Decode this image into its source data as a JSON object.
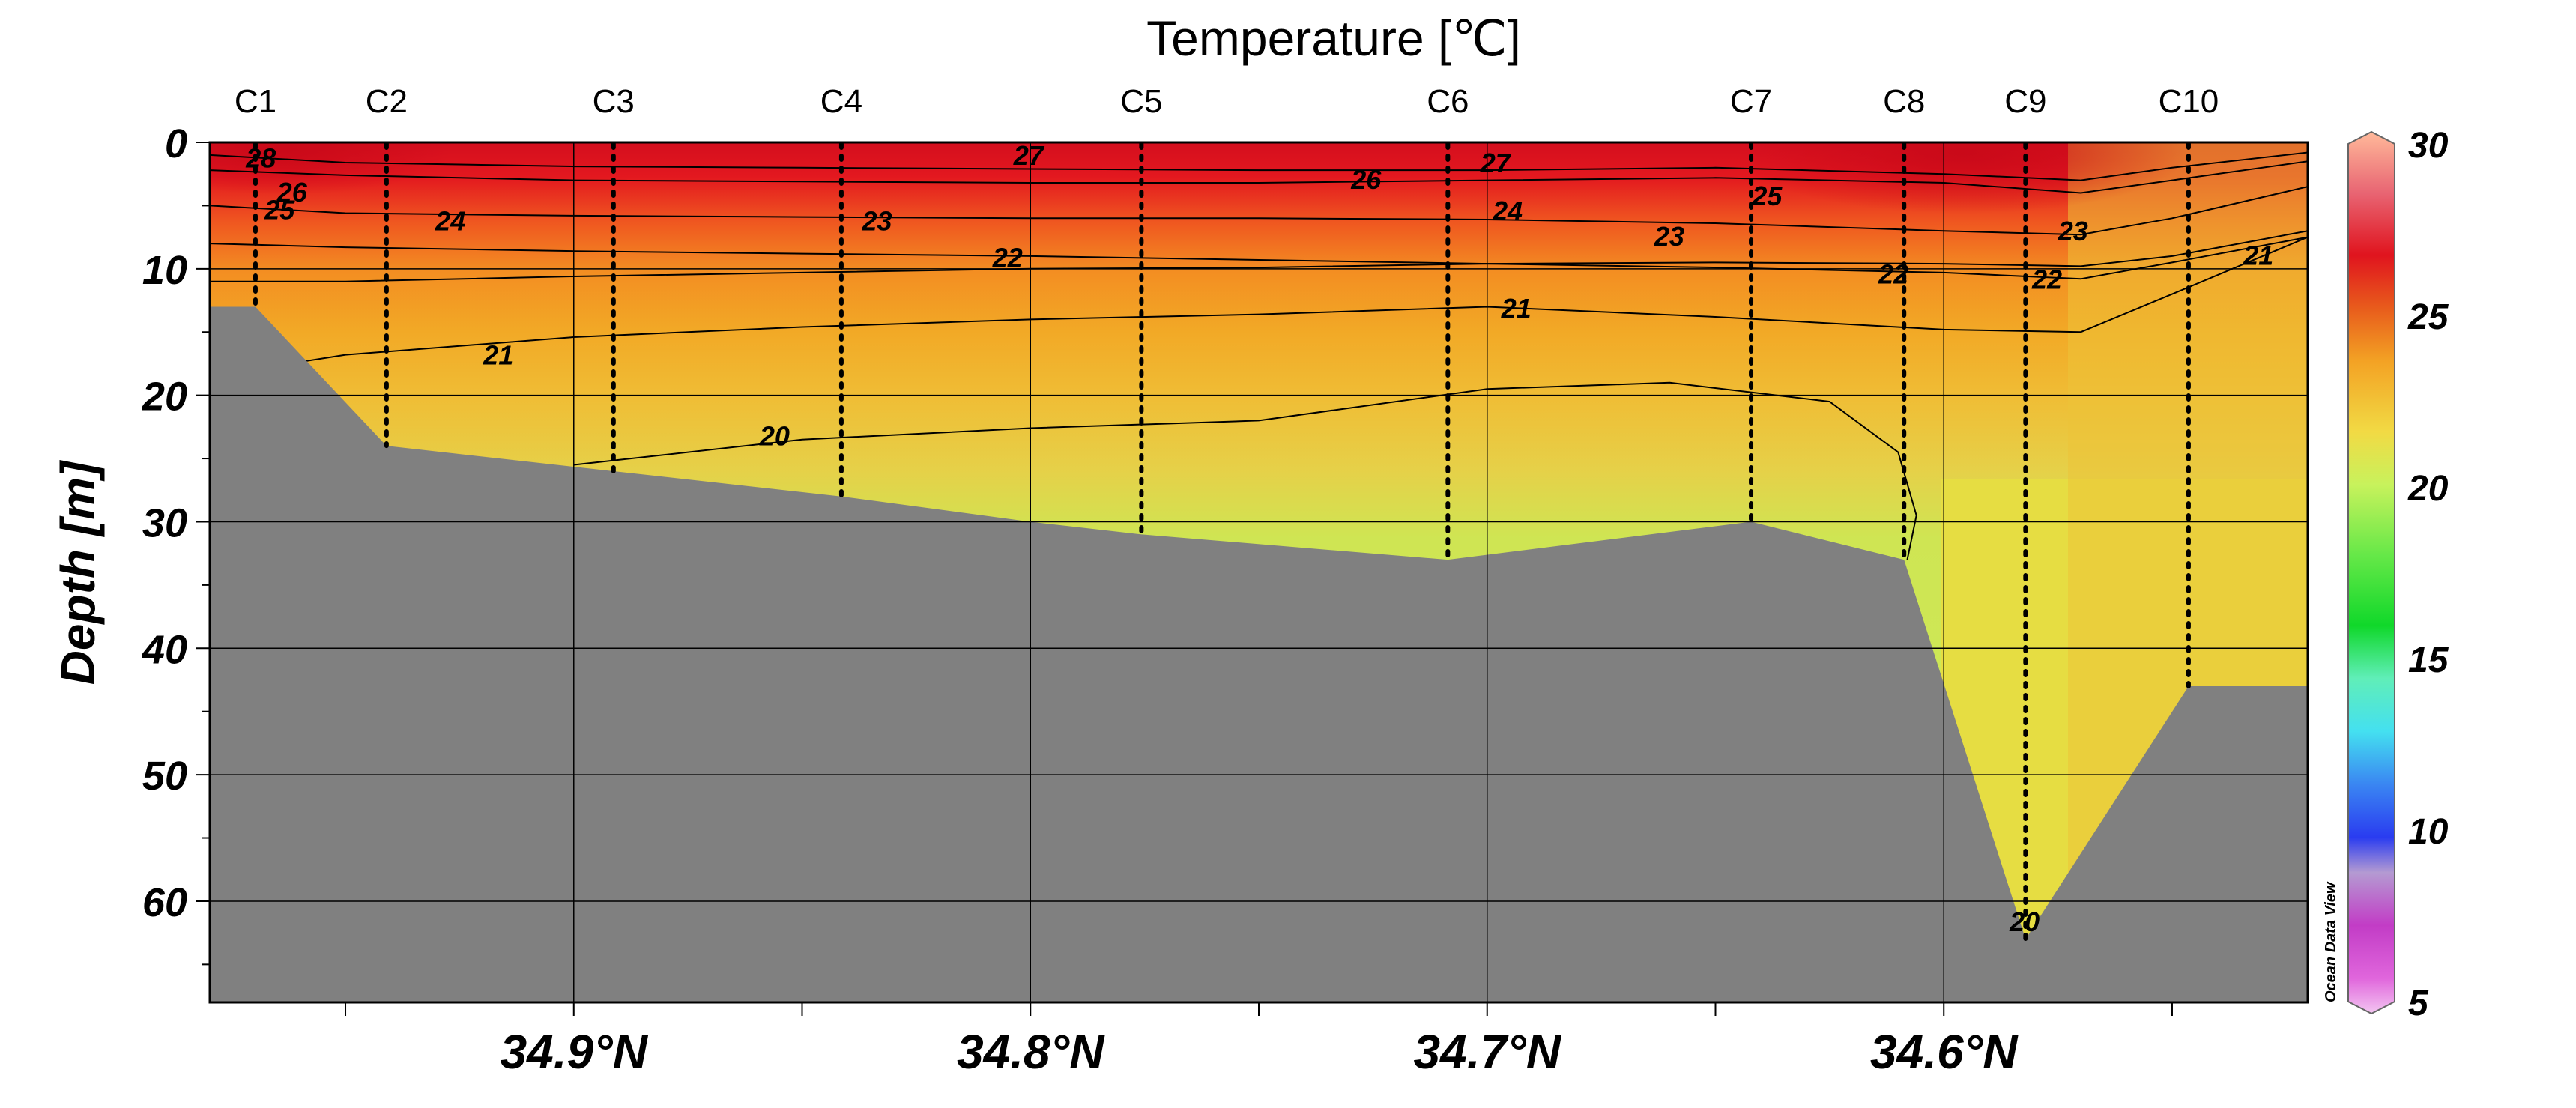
{
  "chart_data": {
    "type": "heatmap",
    "title": "Temperature [℃]",
    "ylabel": "Depth [m]",
    "xlabel": "",
    "xlim": [
      34.9797,
      34.5203
    ],
    "ylim": [
      0,
      68
    ],
    "x_ticks": [
      34.9,
      34.8,
      34.7,
      34.6
    ],
    "x_tick_labels": [
      "34.9°N",
      "34.8°N",
      "34.7°N",
      "34.6°N"
    ],
    "x_minor_ticks": [
      34.95,
      34.85,
      34.75,
      34.65,
      34.55
    ],
    "y_ticks": [
      0,
      10,
      20,
      30,
      40,
      50,
      60
    ],
    "y_tick_labels": [
      "0",
      "10",
      "20",
      "30",
      "40",
      "50",
      "60"
    ],
    "y_minor_ticks": [
      5,
      15,
      25,
      35,
      45,
      55,
      65
    ],
    "grid": true,
    "stations": [
      {
        "name": "C1",
        "lat": 34.9697,
        "max_depth": 13
      },
      {
        "name": "C2",
        "lat": 34.941,
        "max_depth": 24
      },
      {
        "name": "C3",
        "lat": 34.8913,
        "max_depth": 26
      },
      {
        "name": "C4",
        "lat": 34.8414,
        "max_depth": 28
      },
      {
        "name": "C5",
        "lat": 34.7757,
        "max_depth": 31
      },
      {
        "name": "C6",
        "lat": 34.7086,
        "max_depth": 33
      },
      {
        "name": "C7",
        "lat": 34.6422,
        "max_depth": 30
      },
      {
        "name": "C8",
        "lat": 34.6087,
        "max_depth": 33
      },
      {
        "name": "C9",
        "lat": 34.5821,
        "max_depth": 63
      },
      {
        "name": "C10",
        "lat": 34.5464,
        "max_depth": 43
      }
    ],
    "bottom_profile": [
      [
        34.9797,
        13
      ],
      [
        34.9697,
        13
      ],
      [
        34.941,
        24
      ],
      [
        34.8913,
        26
      ],
      [
        34.8414,
        28
      ],
      [
        34.8,
        30
      ],
      [
        34.7757,
        31
      ],
      [
        34.7086,
        33
      ],
      [
        34.6422,
        30
      ],
      [
        34.6087,
        33
      ],
      [
        34.5821,
        63
      ],
      [
        34.5464,
        43
      ],
      [
        34.5203,
        43
      ]
    ],
    "isotherms": [
      {
        "value": 28,
        "labels": [
          {
            "text": "28",
            "x": 34.9685,
            "y": 1.2
          }
        ]
      },
      {
        "value": 27,
        "labels": [
          {
            "text": "27",
            "x": 34.8004,
            "y": 1.0
          },
          {
            "text": "27",
            "x": 34.6982,
            "y": 1.6
          }
        ]
      },
      {
        "value": 26,
        "labels": [
          {
            "text": "26",
            "x": 34.9617,
            "y": 3.9
          },
          {
            "text": "26",
            "x": 34.7265,
            "y": 2.9
          }
        ]
      },
      {
        "value": 25,
        "labels": [
          {
            "text": "25",
            "x": 34.9644,
            "y": 5.3
          },
          {
            "text": "25",
            "x": 34.6387,
            "y": 4.2
          }
        ]
      },
      {
        "value": 24,
        "labels": [
          {
            "text": "24",
            "x": 34.927,
            "y": 6.2
          },
          {
            "text": "24",
            "x": 34.6955,
            "y": 5.4
          }
        ]
      },
      {
        "value": 23,
        "labels": [
          {
            "text": "23",
            "x": 34.8336,
            "y": 6.2
          },
          {
            "text": "23",
            "x": 34.6601,
            "y": 7.4
          },
          {
            "text": "23",
            "x": 34.5717,
            "y": 7.0
          }
        ]
      },
      {
        "value": 22,
        "labels": [
          {
            "text": "22",
            "x": 34.805,
            "y": 9.1
          },
          {
            "text": "22",
            "x": 34.611,
            "y": 10.4
          },
          {
            "text": "22",
            "x": 34.5774,
            "y": 10.8
          }
        ]
      },
      {
        "value": 21,
        "labels": [
          {
            "text": "21",
            "x": 34.9165,
            "y": 16.8
          },
          {
            "text": "21",
            "x": 34.6936,
            "y": 13.1
          },
          {
            "text": "21",
            "x": 34.5311,
            "y": 8.9
          }
        ]
      },
      {
        "value": 20,
        "labels": [
          {
            "text": "20",
            "x": 34.856,
            "y": 23.2
          },
          {
            "text": "20",
            "x": 34.5823,
            "y": 61.6
          }
        ]
      }
    ],
    "colorbar": {
      "min": 5,
      "max": 30,
      "ticks": [
        5,
        10,
        15,
        20,
        25,
        30
      ],
      "tick_labels": [
        "5",
        "10",
        "15",
        "20",
        "25",
        "30"
      ]
    },
    "watermark": "Ocean Data View",
    "colors": {
      "seafloor": "#808080",
      "warm": "#e0101c",
      "mid": "#f0a020",
      "cool": "#c4ee58"
    }
  }
}
